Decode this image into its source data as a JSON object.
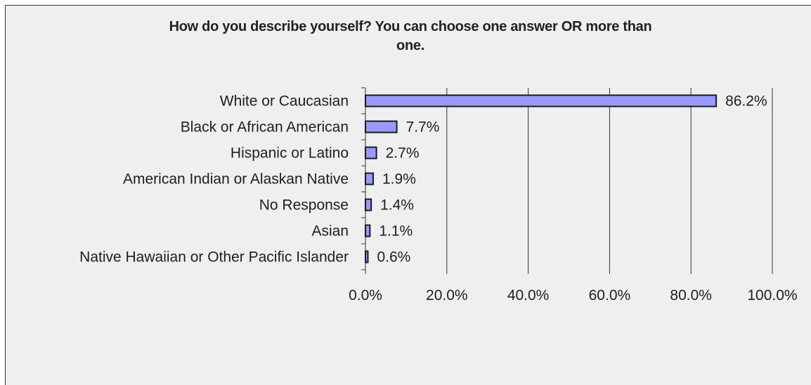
{
  "chart_data": {
    "type": "bar",
    "orientation": "horizontal",
    "title": "How do you describe yourself? You can choose one answer OR more than one.",
    "title_lines": [
      "How do you describe yourself? You can choose one answer OR more than",
      "one."
    ],
    "categories": [
      "White or Caucasian",
      "Black or African American",
      "Hispanic or Latino",
      "American Indian or Alaskan Native",
      "No Response",
      "Asian",
      "Native Hawaiian or Other Pacific Islander"
    ],
    "values": [
      86.2,
      7.7,
      2.7,
      1.9,
      1.4,
      1.1,
      0.6
    ],
    "data_labels": [
      "86.2%",
      "7.7%",
      "2.7%",
      "1.9%",
      "1.4%",
      "1.1%",
      "0.6%"
    ],
    "xlim": [
      0,
      100
    ],
    "x_ticks": [
      0,
      20,
      40,
      60,
      80,
      100
    ],
    "x_tick_labels": [
      "0.0%",
      "20.0%",
      "40.0%",
      "60.0%",
      "80.0%",
      "100.0%"
    ],
    "grid": "vertical",
    "legend": "none",
    "colors": {
      "bar_fill": "#9999ff",
      "bar_stroke": "#1a1a1a",
      "gridline": "#333333",
      "background": "#efefef"
    }
  }
}
